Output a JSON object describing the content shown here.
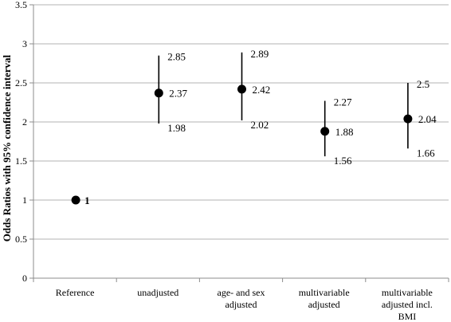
{
  "chart_data": {
    "type": "scatter",
    "ylabel": "Odds Ratios with 95% confidence interval",
    "ylim": [
      0,
      3.5
    ],
    "yticks": [
      "0",
      "0.5",
      "1",
      "1.5",
      "2",
      "2.5",
      "3",
      "3.5"
    ],
    "grid": true,
    "categories": [
      [
        "Reference"
      ],
      [
        "unadjusted"
      ],
      [
        "age- and sex",
        "adjusted"
      ],
      [
        "multivariable",
        "adjusted"
      ],
      [
        "multivariable",
        "adjusted incl.",
        "BMI"
      ]
    ],
    "points": [
      {
        "or": 1,
        "lower": null,
        "upper": null,
        "label": "1",
        "lower_label": "",
        "upper_label": ""
      },
      {
        "or": 2.37,
        "lower": 1.98,
        "upper": 2.85,
        "label": "2.37",
        "lower_label": "1.98",
        "upper_label": "2.85"
      },
      {
        "or": 2.42,
        "lower": 2.02,
        "upper": 2.89,
        "label": "2.42",
        "lower_label": "2.02",
        "upper_label": "2.89"
      },
      {
        "or": 1.88,
        "lower": 1.56,
        "upper": 2.27,
        "label": "1.88",
        "lower_label": "1.56",
        "upper_label": "2.27"
      },
      {
        "or": 2.04,
        "lower": 1.66,
        "upper": 2.5,
        "label": "2.04",
        "lower_label": "1.66",
        "upper_label": "2.5"
      }
    ]
  }
}
